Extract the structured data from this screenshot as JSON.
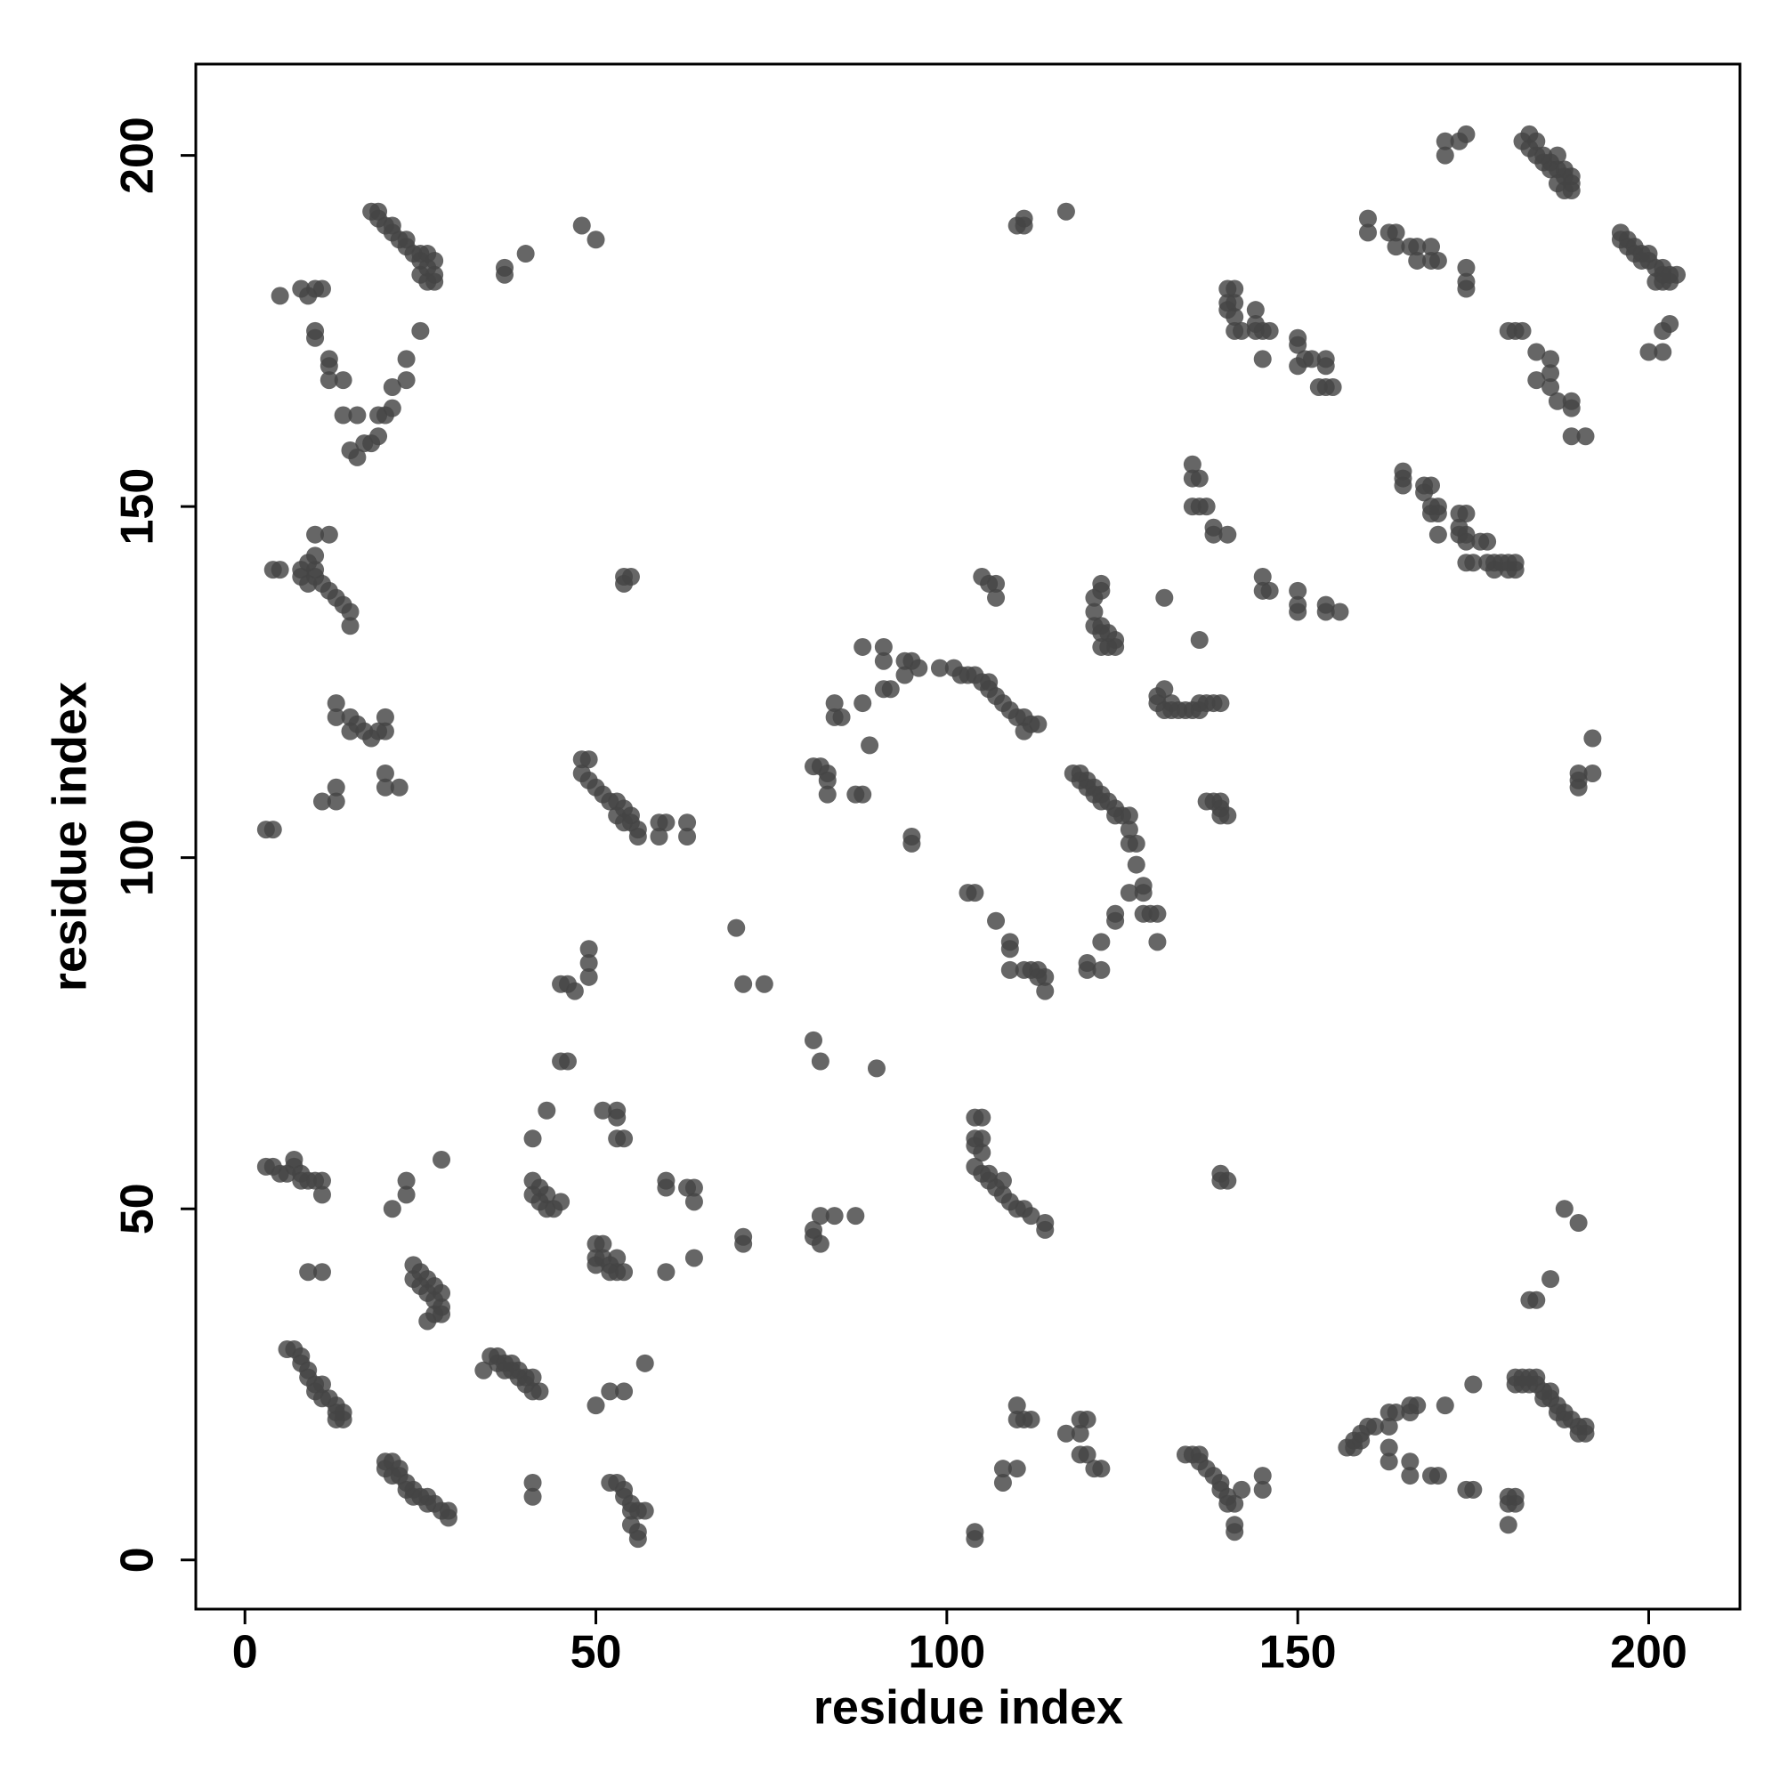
{
  "chart_data": {
    "type": "scatter",
    "x_label": "residue index",
    "y_label": "residue index",
    "xlim": [
      -7,
      213
    ],
    "ylim": [
      -7,
      213
    ],
    "xticks": [
      0,
      50,
      100,
      150,
      200
    ],
    "yticks": [
      0,
      50,
      100,
      150,
      200
    ],
    "color": "#444444",
    "x": [
      18,
      19,
      20,
      21,
      22,
      23,
      24,
      25,
      26,
      27,
      27,
      26,
      25,
      19,
      21,
      23,
      25,
      26,
      27,
      5,
      8,
      9,
      10,
      11,
      10,
      10,
      12,
      12,
      12,
      14,
      14,
      16,
      15,
      16,
      17,
      18,
      19,
      19,
      20,
      21,
      21,
      23,
      23,
      25,
      37,
      37,
      40,
      48,
      50,
      4,
      5,
      8,
      8,
      9,
      10,
      10,
      11,
      12,
      13,
      14,
      15,
      15,
      10,
      12,
      9,
      10,
      13,
      13,
      15,
      16,
      15,
      17,
      18,
      19,
      20,
      20,
      20,
      20,
      22,
      13,
      13,
      11,
      3,
      4,
      54,
      55,
      54,
      48,
      49,
      48,
      49,
      50,
      51,
      52,
      53,
      54,
      55,
      53,
      54,
      55,
      56,
      56,
      59,
      60,
      59,
      63,
      63,
      49,
      49,
      49,
      45,
      46,
      47,
      45,
      46,
      43,
      41,
      51,
      53,
      53,
      53,
      54,
      70,
      71,
      74,
      81,
      82,
      90,
      3,
      4,
      5,
      6,
      7,
      7,
      8,
      8,
      9,
      10,
      11,
      11,
      23,
      23,
      21,
      28,
      9,
      11,
      24,
      24,
      25,
      25,
      26,
      26,
      27,
      27,
      27,
      26,
      28,
      28,
      28,
      41,
      41,
      42,
      42,
      43,
      43,
      44,
      45,
      60,
      60,
      63,
      64,
      64,
      50,
      51,
      50,
      50,
      51,
      52,
      52,
      53,
      53,
      54,
      60,
      64,
      71,
      71,
      81,
      81,
      82,
      82,
      84,
      87,
      6,
      7,
      8,
      8,
      9,
      9,
      10,
      10,
      11,
      11,
      12,
      13,
      13,
      14,
      14,
      13,
      20,
      20,
      21,
      21,
      22,
      22,
      23,
      23,
      24,
      24,
      25,
      26,
      26,
      27,
      28,
      29,
      29,
      34,
      35,
      36,
      36,
      37,
      37,
      38,
      38,
      39,
      39,
      40,
      40,
      41,
      41,
      42,
      41,
      41,
      50,
      52,
      54,
      57,
      52,
      53,
      54,
      54,
      55,
      55,
      56,
      57,
      55,
      56,
      56,
      104,
      105,
      104,
      105,
      104,
      105,
      104,
      105,
      106,
      106,
      107,
      108,
      108,
      109,
      110,
      111,
      112,
      114,
      114,
      139,
      139,
      140,
      104,
      104,
      108,
      108,
      110,
      110,
      110,
      111,
      112,
      117,
      119,
      119,
      120,
      119,
      120,
      121,
      122,
      134,
      135,
      136,
      136,
      137,
      138,
      139,
      139,
      140,
      141,
      140,
      142,
      141,
      141,
      145,
      145,
      157,
      158,
      158,
      159,
      159,
      160,
      161,
      163,
      163,
      164,
      163,
      163,
      166,
      167,
      166,
      166,
      166,
      169,
      170,
      171,
      174,
      175,
      175,
      180,
      180,
      180,
      181,
      181,
      181,
      181,
      182,
      182,
      183,
      183,
      184,
      184,
      185,
      185,
      186,
      186,
      187,
      187,
      188,
      188,
      189,
      190,
      190,
      191,
      191,
      183,
      184,
      186,
      188,
      190,
      81,
      82,
      83,
      83,
      83,
      84,
      84,
      85,
      87,
      88,
      88,
      89,
      88,
      91,
      91,
      91,
      92,
      94,
      94,
      95,
      96,
      99,
      101,
      102,
      103,
      104,
      105,
      106,
      106,
      107,
      108,
      109,
      110,
      111,
      111,
      112,
      113,
      95,
      95,
      103,
      104,
      107,
      109,
      109,
      109,
      111,
      112,
      113,
      113,
      114,
      114,
      105,
      106,
      107,
      107,
      110,
      111,
      111,
      117,
      118,
      119,
      119,
      120,
      120,
      121,
      121,
      122,
      122,
      123,
      124,
      124,
      125,
      126,
      126,
      126,
      127,
      127,
      126,
      128,
      128,
      128,
      129,
      130,
      130,
      124,
      124,
      122,
      120,
      120,
      122,
      121,
      122,
      121,
      121,
      122,
      122,
      123,
      122,
      123,
      124,
      124,
      122,
      131,
      136,
      130,
      131,
      130,
      131,
      132,
      132,
      133,
      134,
      135,
      136,
      136,
      137,
      138,
      139,
      137,
      138,
      139,
      139,
      139,
      140,
      135,
      135,
      136,
      135,
      136,
      137,
      138,
      138,
      140,
      145,
      145,
      146,
      150,
      150,
      150,
      154,
      154,
      156,
      140,
      141,
      140,
      141,
      140,
      141,
      141,
      142,
      144,
      144,
      144,
      145,
      146,
      145,
      150,
      150,
      150,
      151,
      152,
      154,
      154,
      153,
      154,
      155,
      160,
      160,
      163,
      164,
      164,
      166,
      167,
      167,
      169,
      169,
      170,
      174,
      174,
      174,
      171,
      171,
      173,
      174,
      182,
      183,
      183,
      184,
      184,
      185,
      185,
      186,
      186,
      187,
      187,
      188,
      188,
      189,
      189,
      189,
      188,
      187,
      196,
      196,
      197,
      197,
      198,
      198,
      199,
      199,
      200,
      200,
      201,
      202,
      202,
      203,
      203,
      204,
      202,
      201,
      200,
      202,
      202,
      203,
      180,
      181,
      182,
      184,
      186,
      186,
      184,
      186,
      187,
      189,
      189,
      189,
      191,
      165,
      165,
      165,
      168,
      168,
      169,
      169,
      169,
      170,
      170,
      170,
      173,
      174,
      173,
      173,
      174,
      174,
      174,
      175,
      176,
      177,
      177,
      178,
      179,
      180,
      181,
      180,
      181,
      178,
      192,
      192,
      190,
      190,
      190
    ],
    "values": [
      192,
      191,
      190,
      189,
      188,
      187,
      186,
      185,
      184,
      183,
      182,
      182,
      183,
      192,
      190,
      188,
      186,
      186,
      185,
      180,
      181,
      180,
      181,
      181,
      175,
      174,
      171,
      170,
      168,
      168,
      163,
      163,
      158,
      157,
      159,
      159,
      160,
      163,
      163,
      164,
      167,
      168,
      171,
      175,
      183,
      184,
      186,
      190,
      188,
      141,
      141,
      140,
      141,
      142,
      141,
      140,
      139,
      138,
      137,
      136,
      135,
      133,
      146,
      146,
      139,
      143,
      122,
      120,
      120,
      119,
      118,
      118,
      117,
      118,
      118,
      120,
      112,
      110,
      110,
      110,
      108,
      108,
      104,
      104,
      140,
      140,
      139,
      114,
      114,
      112,
      111,
      110,
      109,
      108,
      108,
      107,
      106,
      106,
      105,
      105,
      104,
      103,
      105,
      105,
      103,
      105,
      103,
      87,
      85,
      83,
      82,
      82,
      81,
      71,
      71,
      64,
      60,
      64,
      64,
      63,
      60,
      60,
      90,
      82,
      82,
      74,
      71,
      70,
      56,
      56,
      55,
      55,
      57,
      56,
      55,
      54,
      54,
      54,
      54,
      52,
      54,
      52,
      50,
      57,
      41,
      41,
      42,
      40,
      41,
      39,
      40,
      38,
      39,
      37,
      35,
      34,
      36,
      35,
      38,
      54,
      52,
      53,
      51,
      52,
      50,
      50,
      51,
      54,
      53,
      53,
      53,
      51,
      45,
      45,
      43,
      42,
      43,
      42,
      41,
      43,
      41,
      41,
      41,
      43,
      45,
      46,
      46,
      47,
      45,
      49,
      49,
      49,
      30,
      30,
      29,
      28,
      27,
      26,
      25,
      24,
      25,
      23,
      23,
      22,
      21,
      21,
      20,
      20,
      14,
      13,
      14,
      12,
      13,
      12,
      11,
      10,
      10,
      9,
      9,
      9,
      8,
      8,
      7,
      7,
      6,
      27,
      29,
      29,
      28,
      28,
      27,
      28,
      27,
      26,
      27,
      26,
      25,
      24,
      26,
      24,
      11,
      9,
      22,
      24,
      24,
      28,
      11,
      11,
      10,
      9,
      8,
      7,
      7,
      7,
      5,
      4,
      3,
      63,
      63,
      60,
      60,
      59,
      58,
      56,
      55,
      55,
      54,
      53,
      54,
      52,
      51,
      50,
      50,
      49,
      48,
      47,
      55,
      54,
      54,
      4,
      3,
      13,
      11,
      13,
      22,
      20,
      20,
      20,
      18,
      18,
      20,
      20,
      15,
      15,
      13,
      13,
      15,
      15,
      15,
      14,
      13,
      12,
      11,
      10,
      9,
      8,
      8,
      10,
      5,
      4,
      12,
      10,
      16,
      16,
      17,
      17,
      18,
      19,
      19,
      19,
      21,
      21,
      16,
      14,
      22,
      22,
      21,
      14,
      12,
      12,
      12,
      22,
      10,
      10,
      25,
      5,
      8,
      9,
      8,
      9,
      26,
      25,
      26,
      25,
      26,
      25,
      26,
      25,
      24,
      23,
      23,
      24,
      22,
      21,
      21,
      20,
      20,
      19,
      18,
      19,
      18,
      37,
      37,
      40,
      50,
      48,
      113,
      113,
      112,
      111,
      109,
      122,
      120,
      120,
      109,
      109,
      122,
      116,
      130,
      130,
      128,
      124,
      124,
      128,
      126,
      128,
      127,
      127,
      127,
      126,
      126,
      126,
      125,
      125,
      124,
      123,
      122,
      121,
      120,
      120,
      118,
      119,
      119,
      103,
      102,
      95,
      95,
      91,
      88,
      87,
      84,
      84,
      84,
      84,
      83,
      83,
      81,
      140,
      139,
      139,
      137,
      190,
      191,
      190,
      192,
      112,
      112,
      111,
      111,
      110,
      109,
      110,
      109,
      108,
      108,
      107,
      106,
      106,
      106,
      104,
      102,
      102,
      99,
      95,
      96,
      95,
      92,
      92,
      92,
      88,
      92,
      91,
      88,
      85,
      84,
      84,
      137,
      138,
      135,
      133,
      133,
      132,
      132,
      130,
      130,
      130,
      131,
      139,
      137,
      131,
      123,
      124,
      122,
      121,
      122,
      121,
      121,
      121,
      121,
      122,
      121,
      122,
      122,
      122,
      108,
      108,
      108,
      107,
      106,
      106,
      156,
      154,
      154,
      150,
      150,
      150,
      147,
      146,
      146,
      140,
      138,
      138,
      138,
      136,
      135,
      136,
      135,
      135,
      181,
      181,
      179,
      179,
      178,
      177,
      175,
      175,
      178,
      176,
      175,
      175,
      175,
      171,
      174,
      173,
      170,
      171,
      171,
      171,
      170,
      167,
      167,
      167,
      191,
      189,
      189,
      189,
      187,
      187,
      187,
      185,
      187,
      185,
      185,
      184,
      182,
      181,
      202,
      200,
      202,
      203,
      202,
      203,
      201,
      202,
      200,
      200,
      199,
      199,
      198,
      198,
      200,
      198,
      197,
      197,
      196,
      195,
      195,
      196,
      189,
      188,
      188,
      187,
      187,
      186,
      186,
      185,
      186,
      185,
      184,
      184,
      183,
      182,
      183,
      183,
      182,
      182,
      172,
      172,
      175,
      176,
      175,
      175,
      175,
      172,
      171,
      169,
      168,
      167,
      165,
      165,
      164,
      160,
      160,
      155,
      154,
      153,
      153,
      152,
      153,
      150,
      149,
      150,
      149,
      146,
      149,
      149,
      147,
      146,
      145,
      146,
      142,
      142,
      145,
      145,
      142,
      142,
      142,
      142,
      142,
      141,
      141,
      141,
      117,
      112,
      111,
      110,
      112
    ]
  }
}
